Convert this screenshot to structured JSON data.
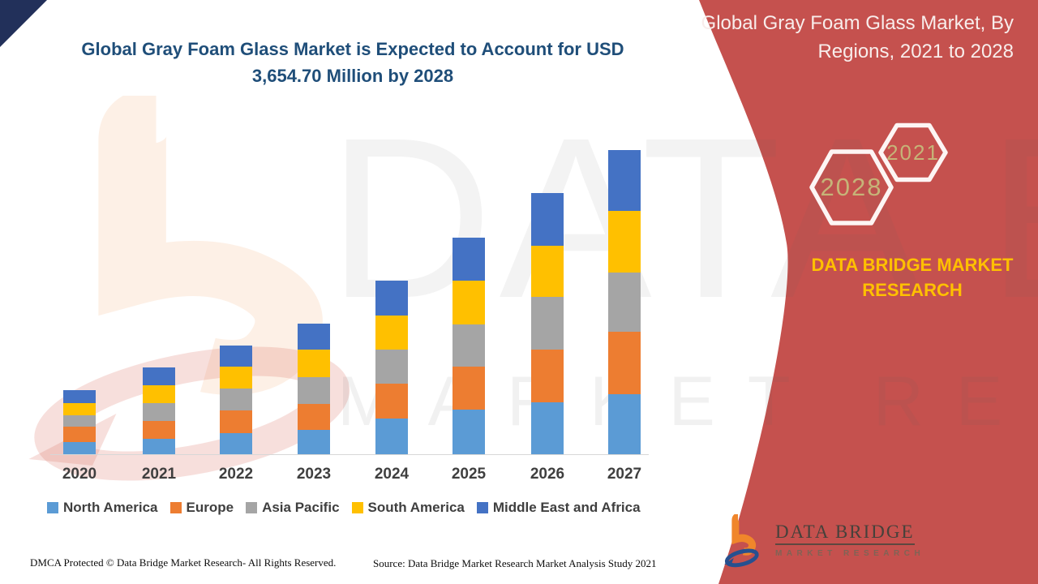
{
  "page": {
    "title_line1": "Global Gray Foam Glass Market is Expected to Account for USD",
    "title_line2": "3,654.70 Million by 2028",
    "title_color": "#1F4E79",
    "corner_accent_color": "#22305A",
    "background_color": "#FFFFFF"
  },
  "watermark": {
    "line1": "DATA BRIDGE",
    "line2": "MARKET RESEARCH"
  },
  "sidebar": {
    "background_color": "#C5514E",
    "heading_line1": "Global Gray Foam Glass Market, By",
    "heading_line2": "Regions, 2021 to 2028",
    "hexagon_back_label": "2028",
    "hexagon_front_label": "2021",
    "hexagon_label_color": "#C6B478",
    "brand_line1": "DATA BRIDGE MARKET",
    "brand_line2": "RESEARCH",
    "brand_color": "#FFC000",
    "logo_wordmark": "DATA BRIDGE",
    "logo_subtext": "MARKET RESEARCH"
  },
  "chart_data": {
    "type": "bar",
    "stacked": true,
    "title": "",
    "xlabel": "",
    "ylabel": "",
    "units": "USD Million (axis unlabeled; segment values estimated from bar heights, 2027 total consistent with USD 3,654.70 Million by 2028)",
    "grid": false,
    "legend_position": "bottom",
    "categories": [
      "2020",
      "2021",
      "2022",
      "2023",
      "2024",
      "2025",
      "2026",
      "2027"
    ],
    "series": [
      {
        "name": "North America",
        "color": "#5B9BD5",
        "values": [
          130,
          160,
          225,
          255,
          375,
          465,
          545,
          630
        ]
      },
      {
        "name": "Europe",
        "color": "#ED7D31",
        "values": [
          160,
          190,
          235,
          275,
          370,
          455,
          555,
          655
        ]
      },
      {
        "name": "Asia Pacific",
        "color": "#A5A5A5",
        "values": [
          120,
          185,
          230,
          280,
          355,
          445,
          550,
          625
        ]
      },
      {
        "name": "South America",
        "color": "#FFC000",
        "values": [
          130,
          190,
          230,
          285,
          355,
          460,
          540,
          645
        ]
      },
      {
        "name": "Middle East and Africa",
        "color": "#4472C4",
        "values": [
          135,
          185,
          220,
          280,
          370,
          450,
          550,
          640
        ]
      }
    ],
    "totals": [
      675,
      910,
      1140,
      1375,
      1825,
      2275,
      2740,
      3195
    ],
    "ylim": [
      0,
      3400
    ]
  },
  "footer": {
    "dmca": "DMCA Protected © Data Bridge Market Research- All Rights Reserved.",
    "source": "Source: Data Bridge Market Research Market Analysis Study 2021"
  }
}
